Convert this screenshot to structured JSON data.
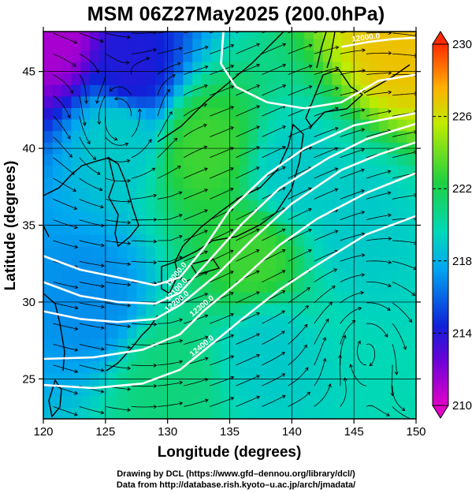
{
  "title": "MSM 06Z27May2025 (200.0hPa)",
  "credits": {
    "line1": "Drawing by DCL (https://www.gfd–dennou.org/library/dcl/)",
    "line2": "Data from http://database.rish.kyoto–u.ac.jp/arch/jmadata/"
  },
  "chart_data": {
    "type": "heatmap",
    "title": "MSM 06Z27May2025 (200.0hPa)",
    "xlabel": "Longitude (degrees)",
    "ylabel": "Latitude  (degrees)",
    "xlim": [
      120,
      150
    ],
    "ylim": [
      22.4,
      47.6
    ],
    "x_ticks": [
      120,
      125,
      130,
      135,
      140,
      145,
      150
    ],
    "y_ticks": [
      25,
      30,
      35,
      40,
      45
    ],
    "grid": true,
    "colorbar": {
      "range": [
        210,
        230
      ],
      "ticks": [
        210,
        214,
        218,
        222,
        226,
        230
      ],
      "extend": "both",
      "colors": [
        "#d400d0",
        "#2a20d0",
        "#00c8ff",
        "#20d040",
        "#d8f000",
        "#ff8000",
        "#ff2000"
      ]
    },
    "shading_variable_values_sample": [
      {
        "lon": 121,
        "lat": 47,
        "value": 211
      },
      {
        "lon": 127,
        "lat": 45,
        "value": 214
      },
      {
        "lon": 126,
        "lat": 41,
        "value": 219
      },
      {
        "lon": 133,
        "lat": 40,
        "value": 223
      },
      {
        "lon": 137,
        "lat": 33,
        "value": 223
      },
      {
        "lon": 140,
        "lat": 38,
        "value": 219
      },
      {
        "lon": 145,
        "lat": 35,
        "value": 219
      },
      {
        "lon": 149,
        "lat": 47,
        "value": 227
      },
      {
        "lon": 124,
        "lat": 30,
        "value": 217
      },
      {
        "lon": 138,
        "lat": 27,
        "value": 219
      },
      {
        "lon": 130,
        "lat": 25,
        "value": 221
      }
    ],
    "contours": [
      {
        "label": "12000.0",
        "points": [
          [
            120,
            33.0
          ],
          [
            123,
            32.1
          ],
          [
            126,
            31.6
          ],
          [
            129,
            31.1
          ],
          [
            131,
            31.6
          ],
          [
            133,
            33.6
          ],
          [
            135,
            36.0
          ],
          [
            138,
            38.3
          ],
          [
            141,
            40.0
          ],
          [
            145,
            41.5
          ],
          [
            150,
            42.3
          ]
        ]
      },
      {
        "label": "12100.0",
        "points": [
          [
            120,
            31.3
          ],
          [
            123,
            30.4
          ],
          [
            126,
            30.0
          ],
          [
            129,
            29.9
          ],
          [
            131,
            30.6
          ],
          [
            133,
            32.4
          ],
          [
            136,
            35.1
          ],
          [
            139,
            37.4
          ],
          [
            143,
            39.4
          ],
          [
            146,
            40.6
          ],
          [
            150,
            41.6
          ]
        ]
      },
      {
        "label": "12200.0",
        "points": [
          [
            120,
            29.4
          ],
          [
            123,
            28.9
          ],
          [
            126,
            28.7
          ],
          [
            129,
            28.9
          ],
          [
            131,
            29.8
          ],
          [
            134,
            31.8
          ],
          [
            137,
            34.2
          ],
          [
            140,
            36.4
          ],
          [
            144,
            38.6
          ],
          [
            147,
            39.6
          ],
          [
            150,
            40.4
          ]
        ]
      },
      {
        "label": "12300.0",
        "points": [
          [
            120,
            26.3
          ],
          [
            124,
            26.4
          ],
          [
            128,
            26.9
          ],
          [
            131,
            27.9
          ],
          [
            133,
            29.5
          ],
          [
            136,
            31.5
          ],
          [
            139,
            33.7
          ],
          [
            142,
            35.4
          ],
          [
            146,
            37.1
          ],
          [
            150,
            38.4
          ]
        ]
      },
      {
        "label": "12400.0",
        "points": [
          [
            120,
            24.6
          ],
          [
            124,
            24.4
          ],
          [
            128,
            24.7
          ],
          [
            131,
            25.6
          ],
          [
            133,
            26.9
          ],
          [
            136,
            28.9
          ],
          [
            139,
            30.8
          ],
          [
            142,
            32.4
          ],
          [
            146,
            34.4
          ],
          [
            150,
            35.6
          ]
        ]
      },
      {
        "label": "12000.0",
        "points": [
          [
            144,
            46.6
          ],
          [
            146,
            46.9
          ],
          [
            148,
            47.1
          ],
          [
            150,
            47.2
          ]
        ]
      },
      {
        "label": "",
        "points": [
          [
            134.5,
            47.6
          ],
          [
            134.3,
            45.5
          ],
          [
            135.5,
            44.0
          ],
          [
            138,
            43.0
          ],
          [
            141,
            42.6
          ],
          [
            144,
            43.0
          ],
          [
            147,
            44.4
          ],
          [
            150,
            44.8
          ]
        ]
      }
    ],
    "contour_labels_shown": [
      "12000.0",
      "12100.0",
      "12200.0",
      "12300.0",
      "12000.0"
    ]
  }
}
